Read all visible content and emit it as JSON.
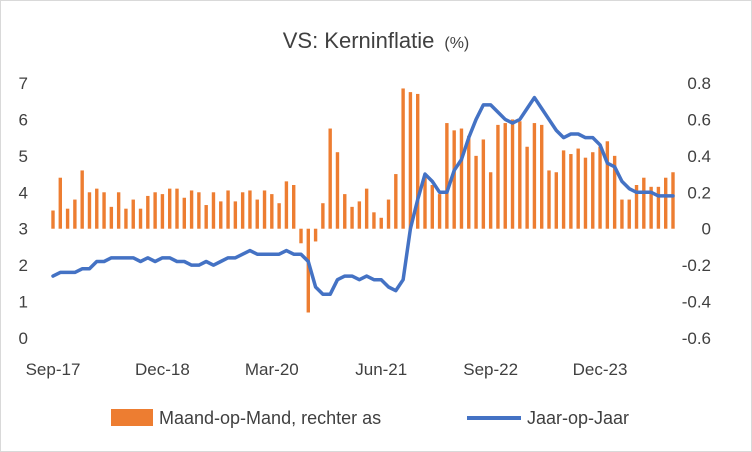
{
  "chart_data": {
    "type": "bar+line",
    "title": "VS: Kerninflatie",
    "title_unit": "(%)",
    "x_tick_labels": [
      "Sep-17",
      "Dec-18",
      "Mar-20",
      "Jun-21",
      "Sep-22",
      "Dec-23"
    ],
    "left_axis": {
      "min": 0,
      "max": 7,
      "ticks": [
        "0",
        "1",
        "2",
        "3",
        "4",
        "5",
        "6",
        "7"
      ]
    },
    "right_axis": {
      "min": -0.6,
      "max": 0.8,
      "ticks": [
        "-0.6",
        "-0.4",
        "-0.2",
        "0",
        "0.2",
        "0.4",
        "0.6",
        "0.8"
      ]
    },
    "legend_position": "bottom",
    "colors": {
      "bars": "#ED7D31",
      "line": "#4472C4"
    },
    "series": [
      {
        "name": "Maand-op-Mand, rechter as",
        "axis": "right",
        "kind": "bar",
        "values": [
          0.1,
          0.28,
          0.11,
          0.16,
          0.32,
          0.2,
          0.22,
          0.2,
          0.12,
          0.2,
          0.11,
          0.16,
          0.11,
          0.18,
          0.2,
          0.19,
          0.22,
          0.22,
          0.17,
          0.21,
          0.2,
          0.13,
          0.2,
          0.15,
          0.21,
          0.15,
          0.2,
          0.21,
          0.16,
          0.21,
          0.19,
          0.14,
          0.26,
          0.24,
          -0.08,
          -0.46,
          -0.07,
          0.14,
          0.55,
          0.42,
          0.19,
          0.12,
          0.15,
          0.22,
          0.09,
          0.06,
          0.16,
          0.3,
          0.77,
          0.75,
          0.74,
          0.3,
          0.24,
          0.19,
          0.58,
          0.54,
          0.55,
          0.51,
          0.4,
          0.49,
          0.31,
          0.57,
          0.58,
          0.6,
          0.59,
          0.45,
          0.58,
          0.57,
          0.32,
          0.31,
          0.43,
          0.41,
          0.44,
          0.39,
          0.42,
          0.45,
          0.48,
          0.4,
          0.16,
          0.16,
          0.24,
          0.28,
          0.23,
          0.23,
          0.28,
          0.31
        ]
      },
      {
        "name": "Jaar-op-Jaar",
        "axis": "left",
        "kind": "line",
        "values": [
          1.7,
          1.8,
          1.8,
          1.8,
          1.9,
          1.9,
          2.1,
          2.1,
          2.2,
          2.2,
          2.2,
          2.2,
          2.1,
          2.2,
          2.1,
          2.2,
          2.2,
          2.1,
          2.1,
          2.0,
          2.0,
          2.1,
          2.0,
          2.1,
          2.2,
          2.2,
          2.3,
          2.4,
          2.3,
          2.3,
          2.3,
          2.3,
          2.4,
          2.3,
          2.3,
          2.1,
          1.4,
          1.2,
          1.2,
          1.6,
          1.7,
          1.7,
          1.6,
          1.7,
          1.6,
          1.6,
          1.4,
          1.3,
          1.6,
          3.0,
          3.8,
          4.5,
          4.3,
          4.0,
          4.0,
          4.6,
          4.9,
          5.5,
          6.0,
          6.4,
          6.4,
          6.2,
          6.0,
          5.9,
          6.0,
          6.3,
          6.6,
          6.3,
          6.0,
          5.7,
          5.5,
          5.6,
          5.6,
          5.5,
          5.5,
          5.3,
          4.8,
          4.7,
          4.3,
          4.1,
          4.0,
          4.0,
          4.0,
          3.9,
          3.9,
          3.9
        ]
      }
    ]
  }
}
